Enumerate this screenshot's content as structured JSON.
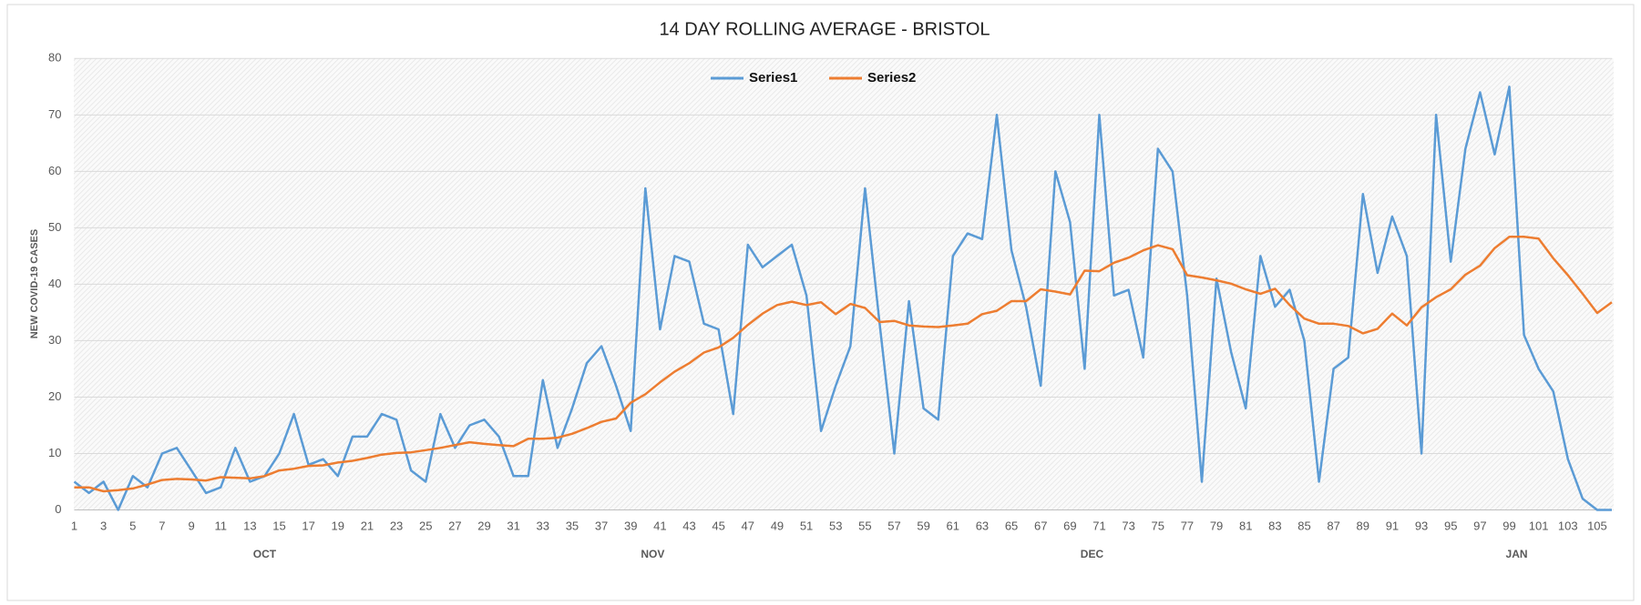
{
  "chart_data": {
    "type": "line",
    "title": "14 DAY ROLLING AVERAGE - BRISTOL",
    "y_label": "NEW COVID-19 CASES",
    "categories": [
      1,
      null,
      3,
      null,
      5,
      null,
      7,
      null,
      9,
      null,
      11,
      null,
      13,
      null,
      15,
      null,
      17,
      null,
      19,
      null,
      21,
      null,
      23,
      null,
      25,
      null,
      27,
      null,
      29,
      null,
      31,
      null,
      33,
      null,
      35,
      null,
      37,
      null,
      39,
      null,
      41,
      null,
      43,
      null,
      45,
      null,
      47,
      null,
      49,
      null,
      51,
      null,
      53,
      null,
      55,
      null,
      57,
      null,
      59,
      null,
      61,
      null,
      63,
      null,
      65,
      null,
      67,
      null,
      69,
      null,
      71,
      null,
      73,
      null,
      75,
      null,
      77,
      null,
      79,
      null,
      81,
      null,
      83,
      null,
      85,
      null,
      87,
      null,
      89,
      null,
      91,
      null,
      93,
      null,
      95,
      null,
      97,
      null,
      99,
      null,
      101,
      null,
      103,
      null,
      105,
      null
    ],
    "month_labels": [
      "OCT",
      "NOV",
      "DEC",
      "JAN"
    ],
    "series": [
      {
        "name": "Series1",
        "color": "#5b9bd5",
        "values": [
          5,
          3,
          5,
          0,
          6,
          4,
          10,
          11,
          7,
          3,
          4,
          11,
          5,
          6,
          10,
          17,
          8,
          9,
          6,
          13,
          13,
          17,
          16,
          7,
          5,
          17,
          11,
          15,
          16,
          13,
          6,
          6,
          23,
          11,
          18,
          26,
          29,
          22,
          14,
          57,
          32,
          45,
          44,
          33,
          32,
          17,
          47,
          43,
          45,
          47,
          38,
          14,
          22,
          29,
          57,
          33,
          10,
          37,
          18,
          16,
          45,
          49,
          48,
          70,
          46,
          36,
          22,
          60,
          51,
          25,
          70,
          38,
          39,
          27,
          64,
          60,
          38,
          5,
          41,
          28,
          18,
          45,
          36,
          39,
          30,
          5,
          25,
          27,
          56,
          42,
          52,
          45,
          10,
          70,
          44,
          64,
          74,
          63,
          75,
          31,
          25,
          21,
          9,
          2,
          0,
          0
        ]
      },
      {
        "name": "Series2",
        "color": "#ed7d31",
        "values": [
          4,
          4,
          3.3,
          3.5,
          3.8,
          4.5,
          5.3,
          5.5,
          5.4,
          5.2,
          5.8,
          5.7,
          5.6,
          6,
          7,
          7.3,
          7.8,
          7.9,
          8.4,
          8.7,
          9.2,
          9.8,
          10.1,
          10.2,
          10.6,
          11,
          11.5,
          12,
          11.7,
          11.5,
          11.3,
          12.6,
          12.6,
          12.8,
          13.5,
          14.5,
          15.6,
          16.2,
          19,
          20.5,
          22.6,
          24.5,
          26,
          27.9,
          28.8,
          30.5,
          32.8,
          34.8,
          36.3,
          36.9,
          36.3,
          36.8,
          34.7,
          36.5,
          35.8,
          33.3,
          33.5,
          32.7,
          32.5,
          32.4,
          32.7,
          33,
          34.7,
          35.3,
          37,
          37,
          39.1,
          38.7,
          38.2,
          42.4,
          42.3,
          43.8,
          44.7,
          46,
          46.9,
          46.2,
          41.6,
          41.2,
          40.7,
          40.1,
          39.1,
          38.3,
          39.2,
          36.3,
          33.9,
          33,
          33,
          32.6,
          31.3,
          32.1,
          34.8,
          32.7,
          35.9,
          37.7,
          39.1,
          41.7,
          43.3,
          46.4,
          48.4,
          48.4,
          48.1,
          44.6,
          41.6,
          38.3,
          34.9,
          36.8
        ]
      }
    ],
    "ylim": [
      0,
      80
    ],
    "yticks": [
      0,
      10,
      20,
      30,
      40,
      50,
      60,
      70,
      80
    ],
    "grid": true,
    "legend": "top"
  }
}
